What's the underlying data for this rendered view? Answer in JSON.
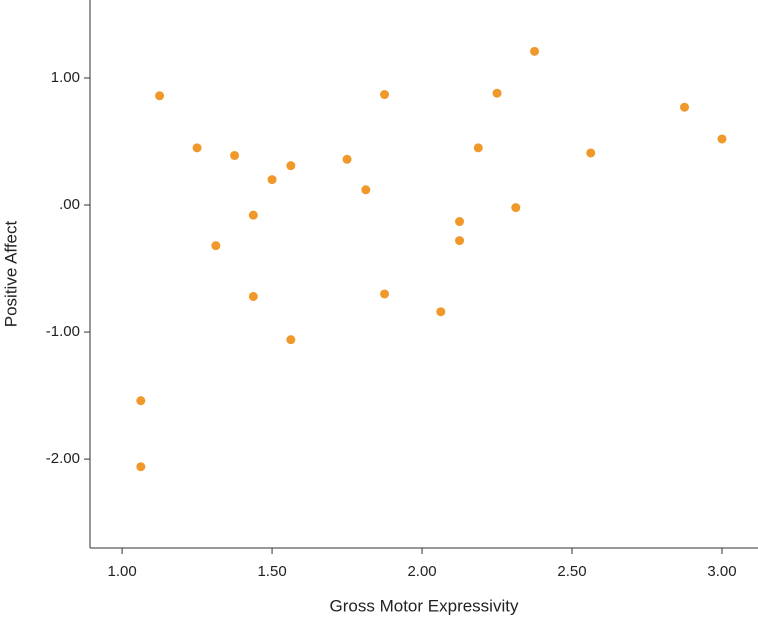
{
  "chart_data": {
    "type": "scatter",
    "x_label": "Gross Motor Expressivity",
    "y_label": "Positive Affect",
    "x": [
      1.125,
      1.25,
      1.375,
      1.3125,
      1.4375,
      1.4375,
      1.5,
      1.5625,
      1.5625,
      1.0625,
      1.0625,
      1.75,
      1.8125,
      1.875,
      1.875,
      2.0625,
      2.125,
      2.125,
      2.1875,
      2.25,
      2.3125,
      2.375,
      2.5625,
      2.875,
      3.0
    ],
    "values": [
      0.86,
      0.45,
      0.39,
      -0.32,
      -0.08,
      -0.72,
      0.2,
      0.31,
      -1.06,
      -1.54,
      -2.06,
      0.36,
      0.12,
      0.87,
      -0.7,
      -0.84,
      -0.13,
      -0.28,
      0.45,
      0.88,
      -0.02,
      1.21,
      0.41,
      0.77,
      0.52
    ],
    "color": "#f0982a",
    "xlim": [
      0.893,
      3.12
    ],
    "ylim": [
      -2.7,
      1.614
    ],
    "xticks": [
      {
        "value": 1,
        "label": "1.00"
      },
      {
        "value": 1.5,
        "label": "1.50"
      },
      {
        "value": 2,
        "label": "2.00"
      },
      {
        "value": 2.5,
        "label": "2.50"
      },
      {
        "value": 3,
        "label": "3.00"
      }
    ],
    "yticks": [
      {
        "value": 1,
        "label": "1.00"
      },
      {
        "value": 0,
        "label": ".00"
      },
      {
        "value": -1,
        "label": "-1.00"
      },
      {
        "value": -2,
        "label": "-2.00"
      }
    ]
  }
}
